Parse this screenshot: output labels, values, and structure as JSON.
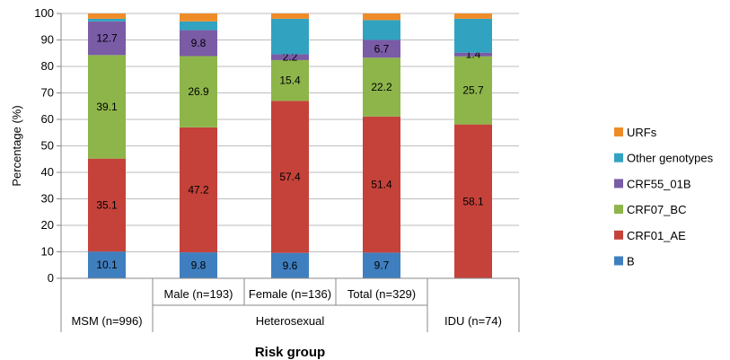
{
  "chart_data": {
    "type": "bar",
    "stacked": true,
    "ylabel": "Percentage (%)",
    "xlabel": "Risk group",
    "ylim": [
      0,
      100
    ],
    "yticks": [
      0,
      10,
      20,
      30,
      40,
      50,
      60,
      70,
      80,
      90,
      100
    ],
    "grid": true,
    "legend_position": "right",
    "categories": [
      "MSM (n=996)",
      "Male (n=193)",
      "Female (n=136)",
      "Total (n=329)",
      "IDU (n=74)"
    ],
    "groups": [
      {
        "label": "MSM (n=996)",
        "categories": [
          "MSM (n=996)"
        ]
      },
      {
        "label": "Heterosexual",
        "categories": [
          "Male (n=193)",
          "Female (n=136)",
          "Total (n=329)"
        ]
      },
      {
        "label": "IDU (n=74)",
        "categories": [
          "IDU (n=74)"
        ]
      }
    ],
    "group_labels_display": [
      "MSM (n=996)",
      "Heterosexual",
      "IDU   (n=74)"
    ],
    "series": [
      {
        "name": "B",
        "color": "#3f7fbf",
        "values": [
          10.1,
          9.8,
          9.6,
          9.7,
          0
        ],
        "labels": [
          "10.1",
          "9.8",
          "9.6",
          "9.7",
          ""
        ]
      },
      {
        "name": "CRF01_AE",
        "color": "#c4423a",
        "values": [
          35.1,
          47.2,
          57.4,
          51.4,
          58.1
        ],
        "labels": [
          "35.1",
          "47.2",
          "57.4",
          "51.4",
          "58.1"
        ]
      },
      {
        "name": "CRF07_BC",
        "color": "#8db54a",
        "values": [
          39.1,
          26.9,
          15.4,
          22.2,
          25.7
        ],
        "labels": [
          "39.1",
          "26.9",
          "15.4",
          "22.2",
          "25.7"
        ]
      },
      {
        "name": "CRF55_01B",
        "color": "#7a5ba6",
        "values": [
          12.7,
          9.8,
          2.2,
          6.7,
          1.4
        ],
        "labels": [
          "12.7",
          "9.8",
          "2.2",
          "6.7",
          "1.4"
        ]
      },
      {
        "name": "Other genotypes",
        "color": "#31a3c0",
        "values": [
          1.0,
          3.3,
          13.4,
          7.5,
          12.8
        ],
        "labels": [
          "",
          "",
          "",
          "",
          ""
        ]
      },
      {
        "name": "URFs",
        "color": "#ee8c2a",
        "values": [
          2.0,
          3.0,
          2.0,
          2.5,
          2.0
        ],
        "labels": [
          "",
          "",
          "",
          "",
          ""
        ]
      }
    ],
    "legend_order": [
      "URFs",
      "Other genotypes",
      "CRF55_01B",
      "CRF07_BC",
      "CRF01_AE",
      "B"
    ]
  }
}
